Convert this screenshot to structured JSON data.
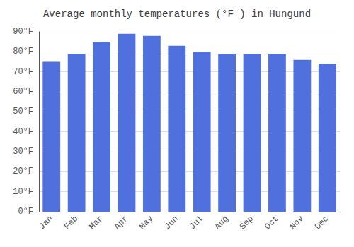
{
  "chart_data": {
    "type": "bar",
    "title": "Average monthly temperatures (°F ) in Hungund",
    "categories": [
      "Jan",
      "Feb",
      "Mar",
      "Apr",
      "May",
      "Jun",
      "Jul",
      "Aug",
      "Sep",
      "Oct",
      "Nov",
      "Dec"
    ],
    "values": [
      75,
      79,
      85,
      89,
      88,
      83,
      80,
      79,
      79,
      79,
      76,
      74
    ],
    "ylim": [
      0,
      90
    ],
    "yticks": [
      {
        "value": 0,
        "label": "0°F"
      },
      {
        "value": 10,
        "label": "10°F"
      },
      {
        "value": 20,
        "label": "20°F"
      },
      {
        "value": 30,
        "label": "30°F"
      },
      {
        "value": 40,
        "label": "40°F"
      },
      {
        "value": 50,
        "label": "50°F"
      },
      {
        "value": 60,
        "label": "60°F"
      },
      {
        "value": 70,
        "label": "70°F"
      },
      {
        "value": 80,
        "label": "80°F"
      },
      {
        "value": 90,
        "label": "90°F"
      }
    ],
    "grid": true
  }
}
